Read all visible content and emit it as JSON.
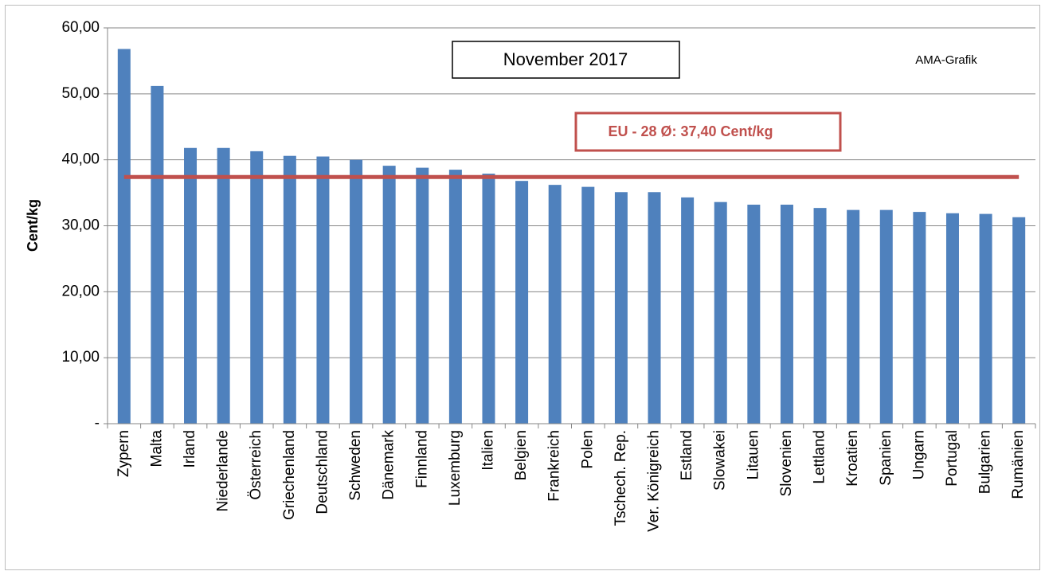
{
  "chart_data": {
    "type": "bar",
    "title": "November 2017",
    "annotation": "AMA-Grafik",
    "y_label": "Cent/kg",
    "categories": [
      "Zypern",
      "Malta",
      "Irland",
      "Niederlande",
      "Österreich",
      "Griechenland",
      "Deutschland",
      "Schweden",
      "Dänemark",
      "Finnland",
      "Luxemburg",
      "Italien",
      "Belgien",
      "Frankreich",
      "Polen",
      "Tschech. Rep.",
      "Ver. Königreich",
      "Estland",
      "Slowakei",
      "Litauen",
      "Slovenien",
      "Lettland",
      "Kroatien",
      "Spanien",
      "Ungarn",
      "Portugal",
      "Bulgarien",
      "Rumänien"
    ],
    "values": [
      56.8,
      51.2,
      41.8,
      41.8,
      41.3,
      40.6,
      40.5,
      40.0,
      39.1,
      38.8,
      38.5,
      37.9,
      36.8,
      36.2,
      35.9,
      35.1,
      35.1,
      34.3,
      33.6,
      33.2,
      33.2,
      32.7,
      32.4,
      32.4,
      32.1,
      31.9,
      31.8,
      31.3
    ],
    "color": "#4f81bd",
    "ylim": [
      0,
      60
    ],
    "yticks": [
      {
        "value": 0,
        "label": "-"
      },
      {
        "value": 10,
        "label": "10,00"
      },
      {
        "value": 20,
        "label": "20,00"
      },
      {
        "value": 30,
        "label": "30,00"
      },
      {
        "value": 40,
        "label": "40,00"
      },
      {
        "value": 50,
        "label": "50,00"
      },
      {
        "value": 60,
        "label": "60,00"
      }
    ],
    "grid": true,
    "reference_line": {
      "value": 37.4,
      "label": "EU - 28 Ø: 37,40 Cent/kg",
      "color": "#c0504d"
    }
  }
}
